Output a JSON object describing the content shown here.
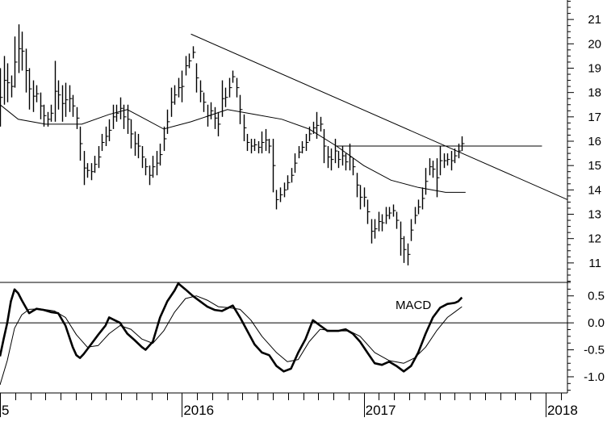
{
  "chart_data": [
    {
      "type": "bar",
      "subtype": "ohlc-price",
      "ylim": [
        10.2,
        21.8
      ],
      "yticks": [
        11,
        12,
        13,
        14,
        15,
        16,
        17,
        18,
        19,
        20,
        21
      ],
      "x_range": [
        2015.0,
        2018.12
      ],
      "x_year_labels": [
        "5",
        "2016",
        "2017",
        "2018"
      ],
      "x_year_positions": [
        2015.0,
        2016.0,
        2017.0,
        2018.0
      ],
      "grid": false,
      "price_bars": [
        [
          2015.0,
          16.6,
          19.0
        ],
        [
          2015.02,
          17.5,
          19.5
        ],
        [
          2015.04,
          17.6,
          19.2
        ],
        [
          2015.06,
          17.8,
          18.7
        ],
        [
          2015.08,
          18.2,
          20.3
        ],
        [
          2015.1,
          18.8,
          20.8
        ],
        [
          2015.12,
          18.9,
          20.5
        ],
        [
          2015.14,
          18.0,
          19.8
        ],
        [
          2015.16,
          17.3,
          19.0
        ],
        [
          2015.18,
          17.2,
          18.5
        ],
        [
          2015.2,
          17.6,
          18.3
        ],
        [
          2015.22,
          16.9,
          18.0
        ],
        [
          2015.24,
          16.6,
          17.5
        ],
        [
          2015.26,
          16.6,
          17.2
        ],
        [
          2015.28,
          16.8,
          17.5
        ],
        [
          2015.3,
          16.8,
          19.3
        ],
        [
          2015.32,
          17.3,
          18.5
        ],
        [
          2015.34,
          16.8,
          18.3
        ],
        [
          2015.36,
          17.0,
          18.4
        ],
        [
          2015.38,
          17.2,
          18.3
        ],
        [
          2015.4,
          17.0,
          17.9
        ],
        [
          2015.42,
          16.5,
          17.4
        ],
        [
          2015.44,
          15.2,
          16.6
        ],
        [
          2015.46,
          14.2,
          15.6
        ],
        [
          2015.48,
          14.5,
          15.1
        ],
        [
          2015.5,
          14.4,
          15.1
        ],
        [
          2015.52,
          14.7,
          15.4
        ],
        [
          2015.54,
          14.9,
          15.8
        ],
        [
          2015.56,
          15.6,
          16.3
        ],
        [
          2015.58,
          15.8,
          16.6
        ],
        [
          2015.6,
          16.0,
          16.9
        ],
        [
          2015.62,
          16.5,
          17.5
        ],
        [
          2015.64,
          16.8,
          17.5
        ],
        [
          2015.66,
          16.9,
          17.8
        ],
        [
          2015.68,
          16.5,
          17.5
        ],
        [
          2015.7,
          16.3,
          17.5
        ],
        [
          2015.72,
          15.7,
          16.9
        ],
        [
          2015.74,
          15.4,
          16.4
        ],
        [
          2015.76,
          15.3,
          16.3
        ],
        [
          2015.78,
          14.9,
          15.8
        ],
        [
          2015.8,
          14.6,
          15.3
        ],
        [
          2015.82,
          14.2,
          15.0
        ],
        [
          2015.84,
          14.5,
          15.4
        ],
        [
          2015.86,
          14.6,
          15.6
        ],
        [
          2015.88,
          15.0,
          15.9
        ],
        [
          2015.9,
          15.6,
          16.6
        ],
        [
          2015.92,
          16.3,
          17.3
        ],
        [
          2015.94,
          17.0,
          18.2
        ],
        [
          2015.96,
          17.5,
          18.3
        ],
        [
          2015.98,
          17.8,
          18.6
        ],
        [
          2016.0,
          17.6,
          18.9
        ],
        [
          2016.02,
          18.7,
          19.5
        ],
        [
          2016.04,
          19.0,
          19.6
        ],
        [
          2016.06,
          19.4,
          19.9
        ],
        [
          2016.08,
          18.0,
          19.2
        ],
        [
          2016.1,
          17.6,
          18.5
        ],
        [
          2016.12,
          17.2,
          18.0
        ],
        [
          2016.14,
          16.6,
          17.5
        ],
        [
          2016.16,
          16.9,
          17.6
        ],
        [
          2016.18,
          16.5,
          17.4
        ],
        [
          2016.2,
          16.2,
          17.2
        ],
        [
          2016.22,
          17.0,
          18.5
        ],
        [
          2016.24,
          17.4,
          18.2
        ],
        [
          2016.26,
          17.8,
          18.6
        ],
        [
          2016.28,
          18.4,
          18.9
        ],
        [
          2016.3,
          17.8,
          18.6
        ],
        [
          2016.32,
          16.7,
          17.9
        ],
        [
          2016.34,
          16.0,
          17.1
        ],
        [
          2016.36,
          15.6,
          16.3
        ],
        [
          2016.38,
          15.5,
          16.1
        ],
        [
          2016.4,
          15.6,
          16.1
        ],
        [
          2016.42,
          15.5,
          16.0
        ],
        [
          2016.44,
          15.5,
          16.4
        ],
        [
          2016.46,
          15.6,
          16.5
        ],
        [
          2016.48,
          15.5,
          16.1
        ],
        [
          2016.5,
          13.9,
          16.1
        ],
        [
          2016.52,
          13.2,
          14.0
        ],
        [
          2016.54,
          13.5,
          14.1
        ],
        [
          2016.56,
          13.7,
          14.3
        ],
        [
          2016.58,
          14.0,
          14.6
        ],
        [
          2016.6,
          14.3,
          14.9
        ],
        [
          2016.62,
          14.7,
          15.5
        ],
        [
          2016.64,
          15.3,
          15.8
        ],
        [
          2016.66,
          15.5,
          16.0
        ],
        [
          2016.68,
          15.6,
          16.3
        ],
        [
          2016.7,
          16.0,
          16.6
        ],
        [
          2016.72,
          16.3,
          16.8
        ],
        [
          2016.74,
          16.1,
          17.2
        ],
        [
          2016.76,
          16.4,
          17.0
        ],
        [
          2016.78,
          15.1,
          16.5
        ],
        [
          2016.8,
          14.9,
          15.8
        ],
        [
          2016.82,
          14.8,
          15.7
        ],
        [
          2016.84,
          15.1,
          16.1
        ],
        [
          2016.86,
          14.9,
          15.6
        ],
        [
          2016.88,
          15.0,
          15.8
        ],
        [
          2016.9,
          14.8,
          15.5
        ],
        [
          2016.92,
          14.8,
          15.9
        ],
        [
          2016.94,
          14.6,
          15.3
        ],
        [
          2016.96,
          13.7,
          14.7
        ],
        [
          2016.98,
          13.2,
          14.2
        ],
        [
          2017.0,
          13.3,
          14.1
        ],
        [
          2017.02,
          12.6,
          13.6
        ],
        [
          2017.04,
          11.8,
          12.8
        ],
        [
          2017.06,
          12.0,
          12.8
        ],
        [
          2017.08,
          12.3,
          13.1
        ],
        [
          2017.1,
          12.3,
          13.0
        ],
        [
          2017.12,
          12.6,
          13.3
        ],
        [
          2017.14,
          12.8,
          13.3
        ],
        [
          2017.16,
          12.9,
          13.4
        ],
        [
          2017.18,
          12.4,
          13.1
        ],
        [
          2017.2,
          11.3,
          12.7
        ],
        [
          2017.22,
          11.0,
          12.1
        ],
        [
          2017.24,
          10.9,
          11.8
        ],
        [
          2017.26,
          11.9,
          12.8
        ],
        [
          2017.28,
          12.6,
          13.3
        ],
        [
          2017.3,
          13.0,
          13.6
        ],
        [
          2017.32,
          13.2,
          14.1
        ],
        [
          2017.34,
          13.8,
          14.9
        ],
        [
          2017.36,
          14.6,
          15.3
        ],
        [
          2017.38,
          14.5,
          15.2
        ],
        [
          2017.4,
          13.7,
          15.3
        ],
        [
          2017.42,
          14.6,
          15.8
        ],
        [
          2017.44,
          14.9,
          15.5
        ],
        [
          2017.46,
          15.0,
          15.5
        ],
        [
          2017.48,
          14.8,
          15.6
        ],
        [
          2017.5,
          15.1,
          15.7
        ],
        [
          2017.52,
          15.3,
          15.9
        ],
        [
          2017.54,
          15.6,
          16.2
        ]
      ],
      "moving_average": [
        [
          2015.0,
          17.5
        ],
        [
          2015.1,
          16.9
        ],
        [
          2015.25,
          16.7
        ],
        [
          2015.45,
          16.7
        ],
        [
          2015.6,
          17.1
        ],
        [
          2015.7,
          17.3
        ],
        [
          2015.8,
          16.9
        ],
        [
          2015.9,
          16.5
        ],
        [
          2016.05,
          16.8
        ],
        [
          2016.25,
          17.3
        ],
        [
          2016.4,
          17.1
        ],
        [
          2016.55,
          16.9
        ],
        [
          2016.7,
          16.5
        ],
        [
          2016.85,
          15.8
        ],
        [
          2017.0,
          15.0
        ],
        [
          2017.15,
          14.4
        ],
        [
          2017.3,
          14.1
        ],
        [
          2017.45,
          13.9
        ],
        [
          2017.56,
          13.9
        ]
      ],
      "trendlines": [
        {
          "from": [
            2016.05,
            20.4
          ],
          "to": [
            2018.12,
            13.6
          ]
        },
        {
          "from": [
            2016.85,
            15.8
          ],
          "to": [
            2017.98,
            15.8
          ]
        }
      ]
    },
    {
      "type": "line",
      "title": "MACD",
      "ylim": [
        -1.3,
        0.75
      ],
      "yticks": [
        -1.0,
        -0.5,
        0.0,
        0.5
      ],
      "ytick_labels": [
        "-1.0",
        "-0.5",
        "0.0",
        "0.5"
      ],
      "zero_line": 0.0,
      "series": [
        {
          "points": [
            [
              2015.0,
              -0.62
            ],
            [
              2015.02,
              -0.3
            ],
            [
              2015.04,
              0.0
            ],
            [
              2015.06,
              0.4
            ],
            [
              2015.08,
              0.62
            ],
            [
              2015.1,
              0.55
            ],
            [
              2015.12,
              0.42
            ],
            [
              2015.14,
              0.3
            ],
            [
              2015.16,
              0.18
            ],
            [
              2015.18,
              0.22
            ],
            [
              2015.2,
              0.26
            ],
            [
              2015.24,
              0.24
            ],
            [
              2015.28,
              0.2
            ],
            [
              2015.32,
              0.18
            ],
            [
              2015.36,
              -0.05
            ],
            [
              2015.4,
              -0.45
            ],
            [
              2015.42,
              -0.6
            ],
            [
              2015.44,
              -0.65
            ],
            [
              2015.46,
              -0.58
            ],
            [
              2015.5,
              -0.4
            ],
            [
              2015.54,
              -0.22
            ],
            [
              2015.58,
              -0.05
            ],
            [
              2015.6,
              0.1
            ],
            [
              2015.63,
              0.05
            ],
            [
              2015.66,
              0.0
            ],
            [
              2015.7,
              -0.2
            ],
            [
              2015.74,
              -0.32
            ],
            [
              2015.78,
              -0.45
            ],
            [
              2015.8,
              -0.5
            ],
            [
              2015.84,
              -0.35
            ],
            [
              2015.88,
              0.1
            ],
            [
              2015.92,
              0.4
            ],
            [
              2015.96,
              0.6
            ],
            [
              2015.98,
              0.73
            ],
            [
              2016.02,
              0.62
            ],
            [
              2016.06,
              0.5
            ],
            [
              2016.1,
              0.4
            ],
            [
              2016.14,
              0.3
            ],
            [
              2016.18,
              0.24
            ],
            [
              2016.22,
              0.22
            ],
            [
              2016.25,
              0.27
            ],
            [
              2016.28,
              0.32
            ],
            [
              2016.32,
              0.1
            ],
            [
              2016.36,
              -0.15
            ],
            [
              2016.4,
              -0.4
            ],
            [
              2016.44,
              -0.55
            ],
            [
              2016.48,
              -0.6
            ],
            [
              2016.52,
              -0.8
            ],
            [
              2016.56,
              -0.9
            ],
            [
              2016.6,
              -0.85
            ],
            [
              2016.64,
              -0.55
            ],
            [
              2016.68,
              -0.3
            ],
            [
              2016.72,
              0.05
            ],
            [
              2016.76,
              -0.05
            ],
            [
              2016.8,
              -0.15
            ],
            [
              2016.86,
              -0.15
            ],
            [
              2016.9,
              -0.12
            ],
            [
              2016.94,
              -0.2
            ],
            [
              2016.98,
              -0.35
            ],
            [
              2017.02,
              -0.55
            ],
            [
              2017.06,
              -0.75
            ],
            [
              2017.1,
              -0.78
            ],
            [
              2017.14,
              -0.72
            ],
            [
              2017.18,
              -0.8
            ],
            [
              2017.22,
              -0.9
            ],
            [
              2017.26,
              -0.8
            ],
            [
              2017.3,
              -0.55
            ],
            [
              2017.34,
              -0.2
            ],
            [
              2017.38,
              0.1
            ],
            [
              2017.42,
              0.28
            ],
            [
              2017.46,
              0.35
            ],
            [
              2017.5,
              0.37
            ],
            [
              2017.52,
              0.4
            ],
            [
              2017.54,
              0.47
            ]
          ]
        },
        {
          "points": [
            [
              2015.0,
              -1.15
            ],
            [
              2015.04,
              -0.7
            ],
            [
              2015.08,
              -0.1
            ],
            [
              2015.12,
              0.15
            ],
            [
              2015.16,
              0.25
            ],
            [
              2015.22,
              0.26
            ],
            [
              2015.3,
              0.22
            ],
            [
              2015.36,
              0.1
            ],
            [
              2015.42,
              -0.22
            ],
            [
              2015.48,
              -0.45
            ],
            [
              2015.54,
              -0.42
            ],
            [
              2015.6,
              -0.2
            ],
            [
              2015.66,
              -0.05
            ],
            [
              2015.72,
              -0.12
            ],
            [
              2015.78,
              -0.3
            ],
            [
              2015.84,
              -0.38
            ],
            [
              2015.9,
              -0.15
            ],
            [
              2015.96,
              0.2
            ],
            [
              2016.02,
              0.45
            ],
            [
              2016.08,
              0.5
            ],
            [
              2016.14,
              0.42
            ],
            [
              2016.2,
              0.3
            ],
            [
              2016.26,
              0.28
            ],
            [
              2016.32,
              0.25
            ],
            [
              2016.38,
              0.05
            ],
            [
              2016.44,
              -0.25
            ],
            [
              2016.52,
              -0.55
            ],
            [
              2016.58,
              -0.72
            ],
            [
              2016.64,
              -0.68
            ],
            [
              2016.7,
              -0.35
            ],
            [
              2016.76,
              -0.12
            ],
            [
              2016.84,
              -0.15
            ],
            [
              2016.92,
              -0.15
            ],
            [
              2016.98,
              -0.25
            ],
            [
              2017.06,
              -0.55
            ],
            [
              2017.14,
              -0.7
            ],
            [
              2017.22,
              -0.75
            ],
            [
              2017.28,
              -0.65
            ],
            [
              2017.34,
              -0.45
            ],
            [
              2017.4,
              -0.15
            ],
            [
              2017.46,
              0.1
            ],
            [
              2017.5,
              0.2
            ],
            [
              2017.54,
              0.3
            ]
          ]
        }
      ]
    }
  ]
}
